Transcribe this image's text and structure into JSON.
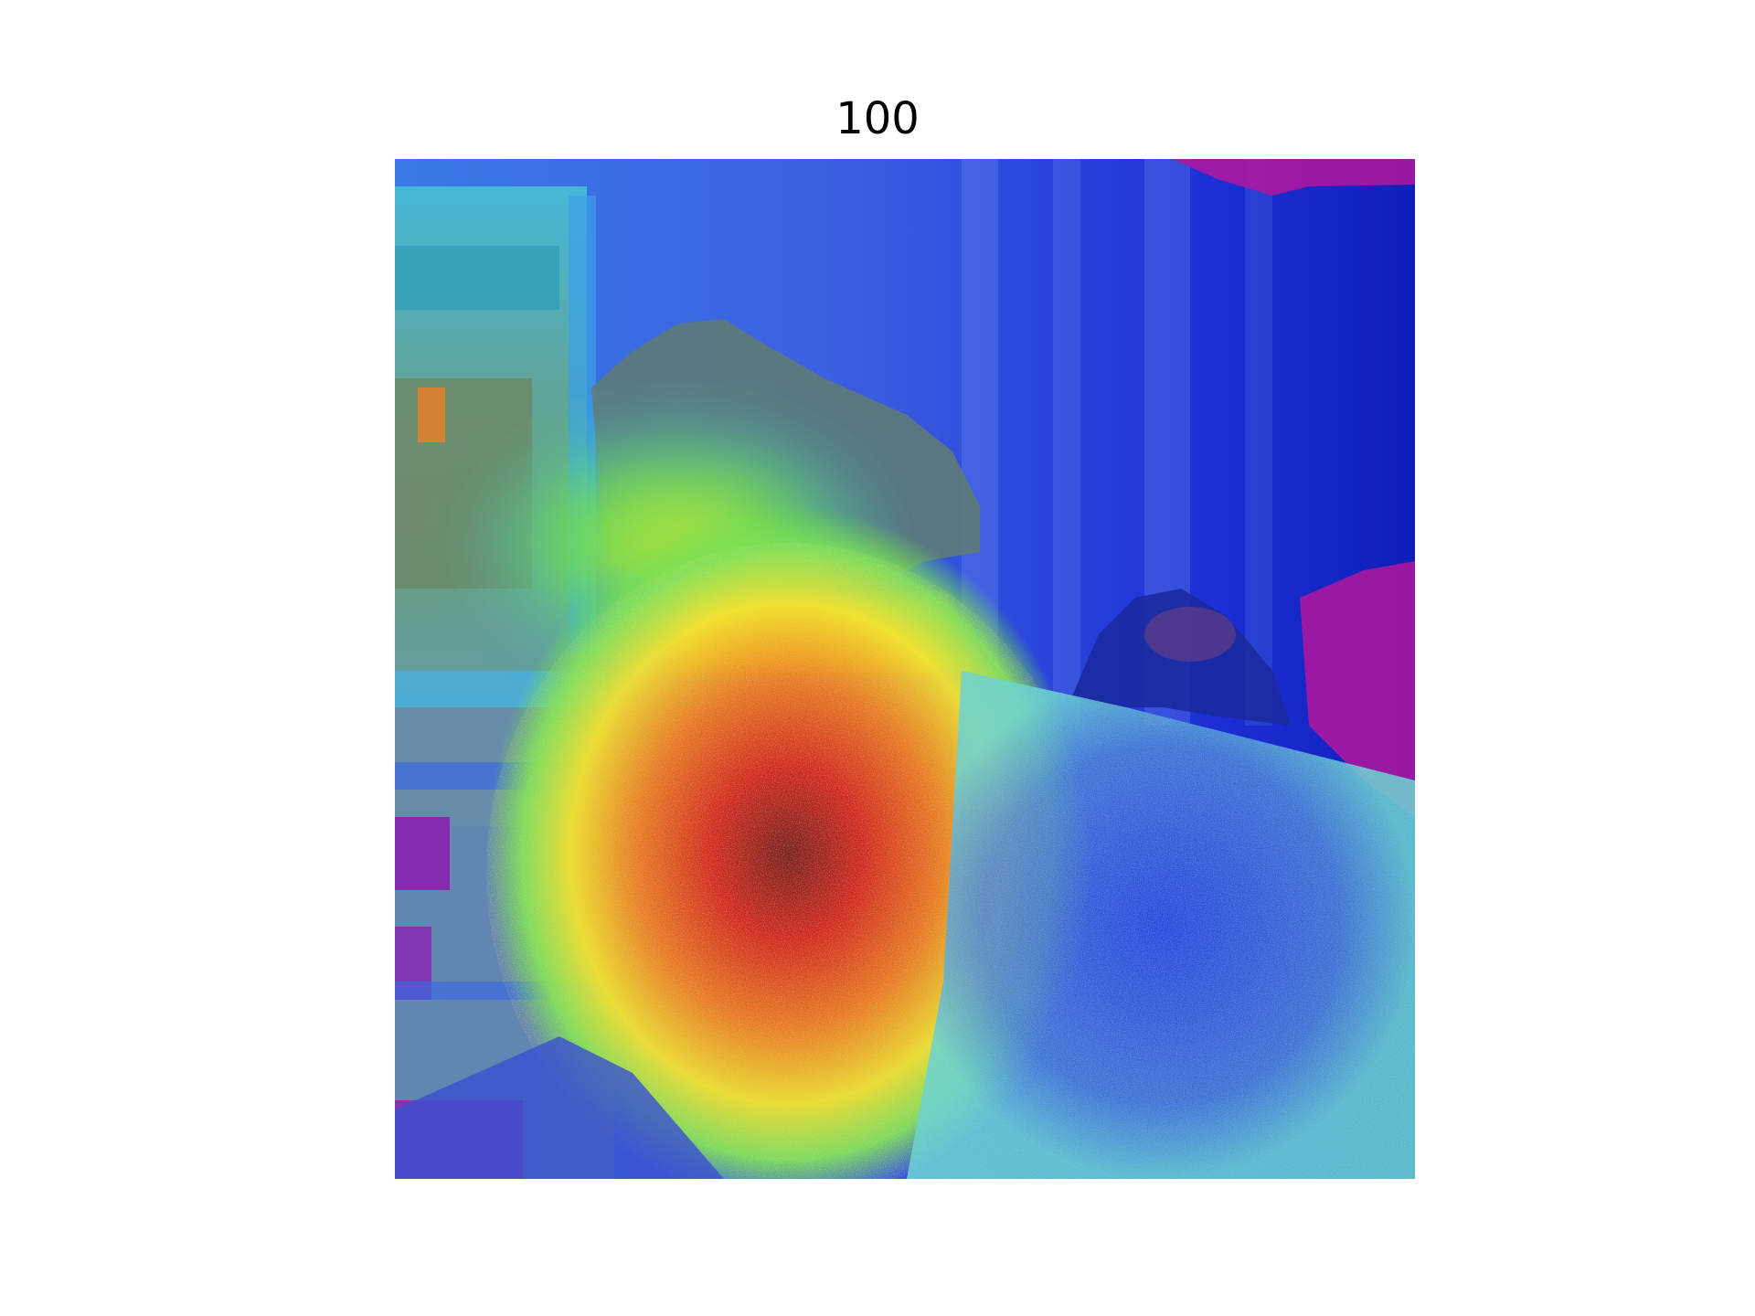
{
  "figure": {
    "title": "100"
  },
  "heatmap_overlay": {
    "colormap": "jet",
    "colors": {
      "background_blue": "#1a2fd8",
      "hot_red": "#e0201a",
      "warm_yellow": "#f2e12a",
      "mid_green": "#6be04a",
      "cool_cyan": "#30c8e8",
      "magenta_patch": "#b3169e"
    }
  }
}
